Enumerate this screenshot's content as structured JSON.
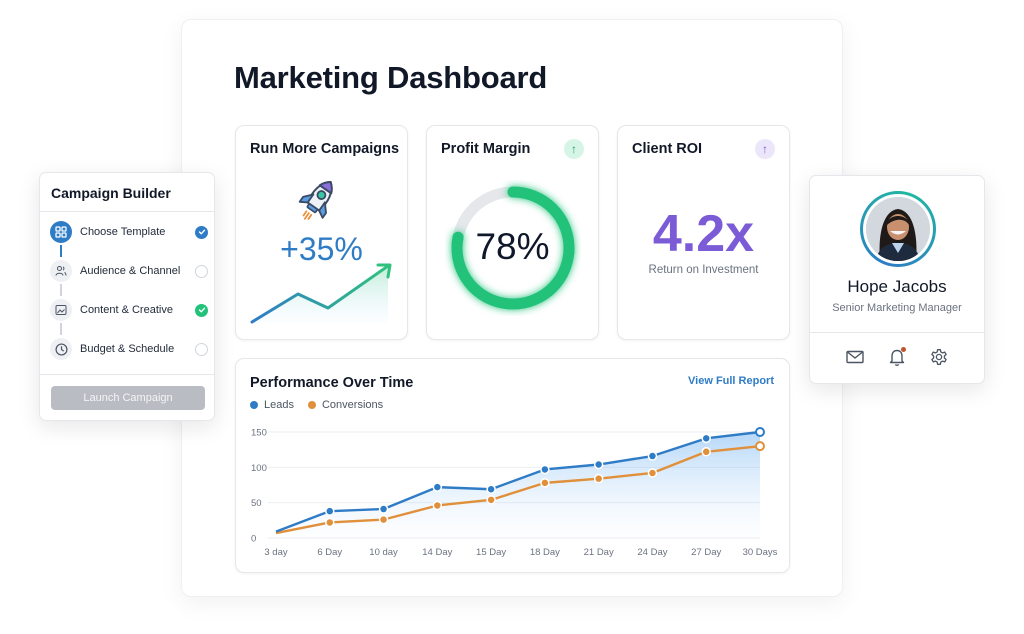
{
  "page": {
    "title": "Marketing Dashboard"
  },
  "cards": {
    "campaigns": {
      "title": "Run More Campaigns",
      "value": "+35%",
      "icon": "rocket-icon"
    },
    "profit": {
      "title": "Profit Margin",
      "value": "78%",
      "percent": 78,
      "trend_icon": "arrow-up-icon",
      "accent": "#22c27a"
    },
    "roi": {
      "title": "Client ROI",
      "value": "4.2x",
      "subtitle": "Return on Investment",
      "trend_icon": "arrow-up-icon",
      "accent": "#7c5bd6"
    }
  },
  "performance": {
    "title": "Performance Over Time",
    "link": "View Full Report",
    "legend": [
      {
        "label": "Leads",
        "color": "#2f7cc6"
      },
      {
        "label": "Conversions",
        "color": "#e08f3a"
      }
    ]
  },
  "chart_data": {
    "type": "line",
    "title": "Performance Over Time",
    "categories": [
      "3 day",
      "6 Day",
      "10 day",
      "14 Day",
      "15 Day",
      "18 Day",
      "21 Day",
      "24 Day",
      "27 Day",
      "30 Days"
    ],
    "series": [
      {
        "name": "Leads",
        "color": "#2f7cc6",
        "values": [
          9,
          38,
          41,
          72,
          69,
          97,
          104,
          116,
          141,
          150
        ]
      },
      {
        "name": "Conversions",
        "color": "#e08f3a",
        "values": [
          7,
          22,
          26,
          46,
          54,
          78,
          84,
          92,
          122,
          130
        ]
      }
    ],
    "yticks": [
      0,
      50,
      100,
      150
    ],
    "ylim": [
      0,
      150
    ],
    "xlabel": "",
    "ylabel": "",
    "grid": true,
    "legend_position": "top-left"
  },
  "builder": {
    "title": "Campaign Builder",
    "steps": [
      {
        "label": "Choose Template",
        "icon": "template-grid-icon",
        "status": "done-blue"
      },
      {
        "label": "Audience & Channel",
        "icon": "users-icon",
        "status": "pending"
      },
      {
        "label": "Content & Creative",
        "icon": "image-icon",
        "status": "done-green"
      },
      {
        "label": "Budget & Schedule",
        "icon": "clock-icon",
        "status": "pending"
      }
    ],
    "button": "Launch Campaign"
  },
  "profile": {
    "name": "Hope Jacobs",
    "role": "Senior Marketing Manager",
    "actions": [
      "mail-icon",
      "bell-icon",
      "gear-icon"
    ]
  }
}
